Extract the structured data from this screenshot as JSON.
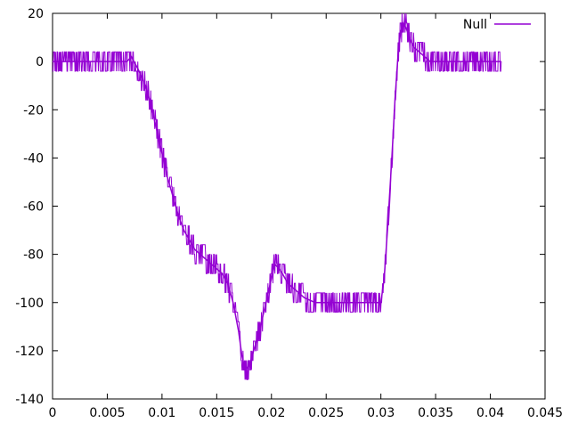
{
  "chart_data": {
    "type": "line",
    "title": "",
    "xlabel": "",
    "ylabel": "",
    "xlim": [
      0,
      0.045
    ],
    "ylim": [
      -140,
      20
    ],
    "x_ticks": [
      0,
      0.005,
      0.01,
      0.015,
      0.02,
      0.025,
      0.03,
      0.035,
      0.04,
      0.045
    ],
    "x_tick_labels": [
      "0",
      "0.005",
      "0.01",
      "0.015",
      "0.02",
      "0.025",
      "0.03",
      "0.035",
      "0.04",
      "0.045"
    ],
    "y_ticks": [
      -140,
      -120,
      -100,
      -80,
      -60,
      -40,
      -20,
      0,
      20
    ],
    "y_tick_labels": [
      "-140",
      "-120",
      "-100",
      "-80",
      "-60",
      "-40",
      "-20",
      "0",
      "20"
    ],
    "grid": false,
    "legend_position": "top-right",
    "noise_amplitude": 4,
    "series": [
      {
        "name": "Null",
        "color": "#9400D3",
        "x": [
          0,
          0.002,
          0.004,
          0.006,
          0.0068,
          0.0072,
          0.0078,
          0.0085,
          0.009,
          0.0095,
          0.01,
          0.0105,
          0.011,
          0.0115,
          0.012,
          0.0125,
          0.013,
          0.0135,
          0.014,
          0.0145,
          0.015,
          0.0155,
          0.016,
          0.0165,
          0.017,
          0.0173,
          0.0176,
          0.018,
          0.0185,
          0.019,
          0.0195,
          0.02,
          0.0203,
          0.0207,
          0.021,
          0.0215,
          0.022,
          0.0225,
          0.023,
          0.024,
          0.025,
          0.026,
          0.027,
          0.028,
          0.029,
          0.03,
          0.0303,
          0.0306,
          0.031,
          0.0313,
          0.0316,
          0.0318,
          0.032,
          0.0323,
          0.0326,
          0.033,
          0.0335,
          0.034,
          0.0345,
          0.035,
          0.036,
          0.037,
          0.038,
          0.039,
          0.04,
          0.041
        ],
        "y": [
          0,
          0,
          0,
          0,
          0,
          2,
          -3,
          -10,
          -18,
          -28,
          -38,
          -48,
          -56,
          -64,
          -70,
          -74,
          -78,
          -80,
          -82,
          -84,
          -86,
          -88,
          -92,
          -100,
          -112,
          -122,
          -128,
          -126,
          -118,
          -110,
          -100,
          -90,
          -84,
          -86,
          -88,
          -92,
          -94,
          -96,
          -98,
          -100,
          -100,
          -100,
          -100,
          -100,
          -100,
          -100,
          -90,
          -70,
          -40,
          -15,
          5,
          12,
          16,
          14,
          10,
          6,
          4,
          2,
          0,
          0,
          0,
          0,
          0,
          0,
          0,
          0
        ]
      }
    ]
  }
}
